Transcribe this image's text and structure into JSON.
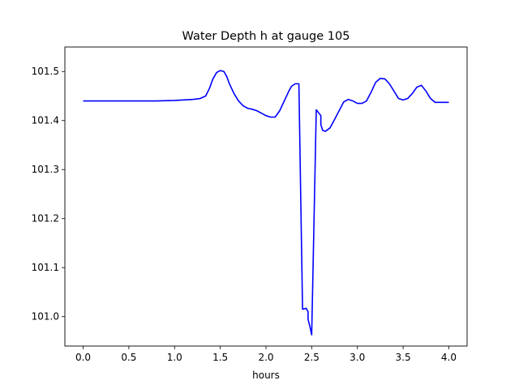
{
  "chart_data": {
    "type": "line",
    "title": "Water Depth h at gauge 105",
    "xlabel": "hours",
    "ylabel": "",
    "xlim": [
      -0.2,
      4.2
    ],
    "ylim": [
      100.94,
      101.55
    ],
    "xticks": [
      0.0,
      0.5,
      1.0,
      1.5,
      2.0,
      2.5,
      3.0,
      3.5,
      4.0
    ],
    "xtick_labels": [
      "0.0",
      "0.5",
      "1.0",
      "1.5",
      "2.0",
      "2.5",
      "3.0",
      "3.5",
      "4.0"
    ],
    "yticks": [
      101.0,
      101.1,
      101.2,
      101.3,
      101.4,
      101.5
    ],
    "ytick_labels": [
      "101.0",
      "101.1",
      "101.2",
      "101.3",
      "101.4",
      "101.5"
    ],
    "grid": false,
    "series": [
      {
        "color": "#0000ff",
        "x": [
          0.0,
          0.2,
          0.5,
          0.8,
          1.0,
          1.1,
          1.2,
          1.28,
          1.34,
          1.38,
          1.42,
          1.46,
          1.5,
          1.54,
          1.57,
          1.6,
          1.65,
          1.7,
          1.75,
          1.8,
          1.85,
          1.9,
          1.95,
          2.0,
          2.05,
          2.1,
          2.15,
          2.2,
          2.25,
          2.28,
          2.32,
          2.36,
          2.4,
          2.44,
          2.46,
          2.46,
          2.48,
          2.5,
          2.55,
          2.6,
          2.6,
          2.62,
          2.65,
          2.7,
          2.75,
          2.8,
          2.85,
          2.9,
          2.95,
          3.0,
          3.05,
          3.1,
          3.15,
          3.2,
          3.25,
          3.3,
          3.35,
          3.4,
          3.45,
          3.5,
          3.55,
          3.6,
          3.65,
          3.7,
          3.75,
          3.8,
          3.85,
          3.9,
          3.95,
          4.0
        ],
        "y": [
          101.44,
          101.44,
          101.44,
          101.44,
          101.441,
          101.442,
          101.443,
          101.445,
          101.45,
          101.465,
          101.485,
          101.498,
          101.502,
          101.5,
          101.49,
          101.475,
          101.455,
          101.44,
          101.43,
          101.425,
          101.423,
          101.42,
          101.415,
          101.41,
          101.407,
          101.407,
          101.42,
          101.44,
          101.46,
          101.47,
          101.475,
          101.475,
          101.015,
          101.017,
          101.01,
          100.995,
          100.98,
          100.963,
          101.422,
          101.41,
          101.392,
          101.38,
          101.378,
          101.385,
          101.402,
          101.42,
          101.438,
          101.443,
          101.44,
          101.435,
          101.435,
          101.44,
          101.458,
          101.478,
          101.486,
          101.485,
          101.475,
          101.46,
          101.445,
          101.442,
          101.445,
          101.455,
          101.468,
          101.472,
          101.46,
          101.445,
          101.437,
          101.437,
          101.437,
          101.437
        ]
      }
    ]
  }
}
